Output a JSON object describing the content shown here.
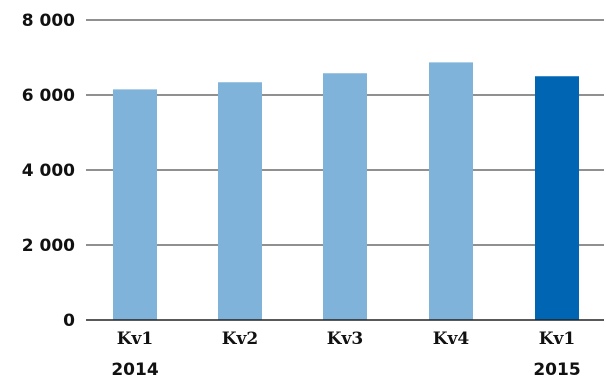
{
  "chart_data": {
    "type": "bar",
    "categories": [
      "Kv1",
      "Kv2",
      "Kv3",
      "Kv4",
      "Kv1"
    ],
    "group_labels": [
      "2014",
      "",
      "",
      "",
      "2015"
    ],
    "values": [
      6150,
      6340,
      6580,
      6870,
      6500
    ],
    "bar_colors": [
      "#80b3d9",
      "#80b3d9",
      "#80b3d9",
      "#80b3d9",
      "#0066b3"
    ],
    "ylim": [
      0,
      8000
    ],
    "yticks": [
      0,
      2000,
      4000,
      6000,
      8000
    ],
    "ytick_labels": [
      "0",
      "2 000",
      "4 000",
      "6 000",
      "8 000"
    ],
    "grid": true,
    "legend": "none",
    "title": "",
    "xlabel": "",
    "ylabel": ""
  }
}
